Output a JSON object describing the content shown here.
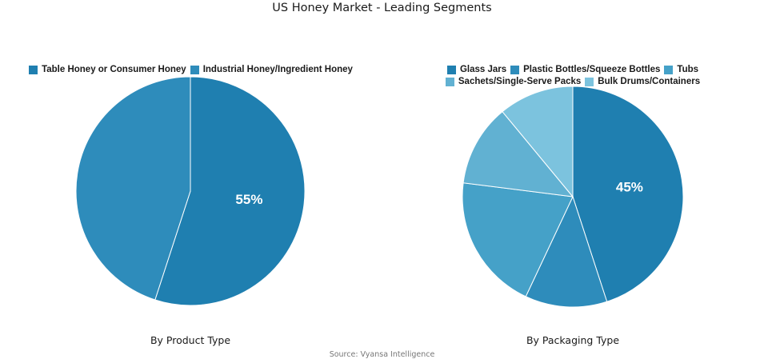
{
  "title": "US Honey Market - Leading Segments",
  "source": "Source: Vyansa Intelligence",
  "chart_data": [
    {
      "type": "pie",
      "subtitle": "By Product Type",
      "categories": [
        "Table Honey or Consumer Honey",
        "Industrial Honey/Ingredient Honey"
      ],
      "values": [
        55,
        45
      ],
      "colors": [
        "#1f7fb0",
        "#2e8cbb"
      ],
      "data_labels": [
        "55%",
        ""
      ],
      "legend_position": "top"
    },
    {
      "type": "pie",
      "subtitle": "By Packaging Type",
      "categories": [
        "Glass Jars",
        "Plastic Bottles/Squeeze Bottles",
        "Tubs",
        "Sachets/Single-Serve Packs",
        "Bulk Drums/Containers"
      ],
      "values": [
        45,
        12,
        20,
        12,
        11
      ],
      "colors": [
        "#1f7fb0",
        "#2e8cbb",
        "#45a1c8",
        "#61b1d2",
        "#7cc3de"
      ],
      "data_labels": [
        "45%",
        "",
        "",
        "",
        ""
      ],
      "legend_position": "top"
    }
  ]
}
